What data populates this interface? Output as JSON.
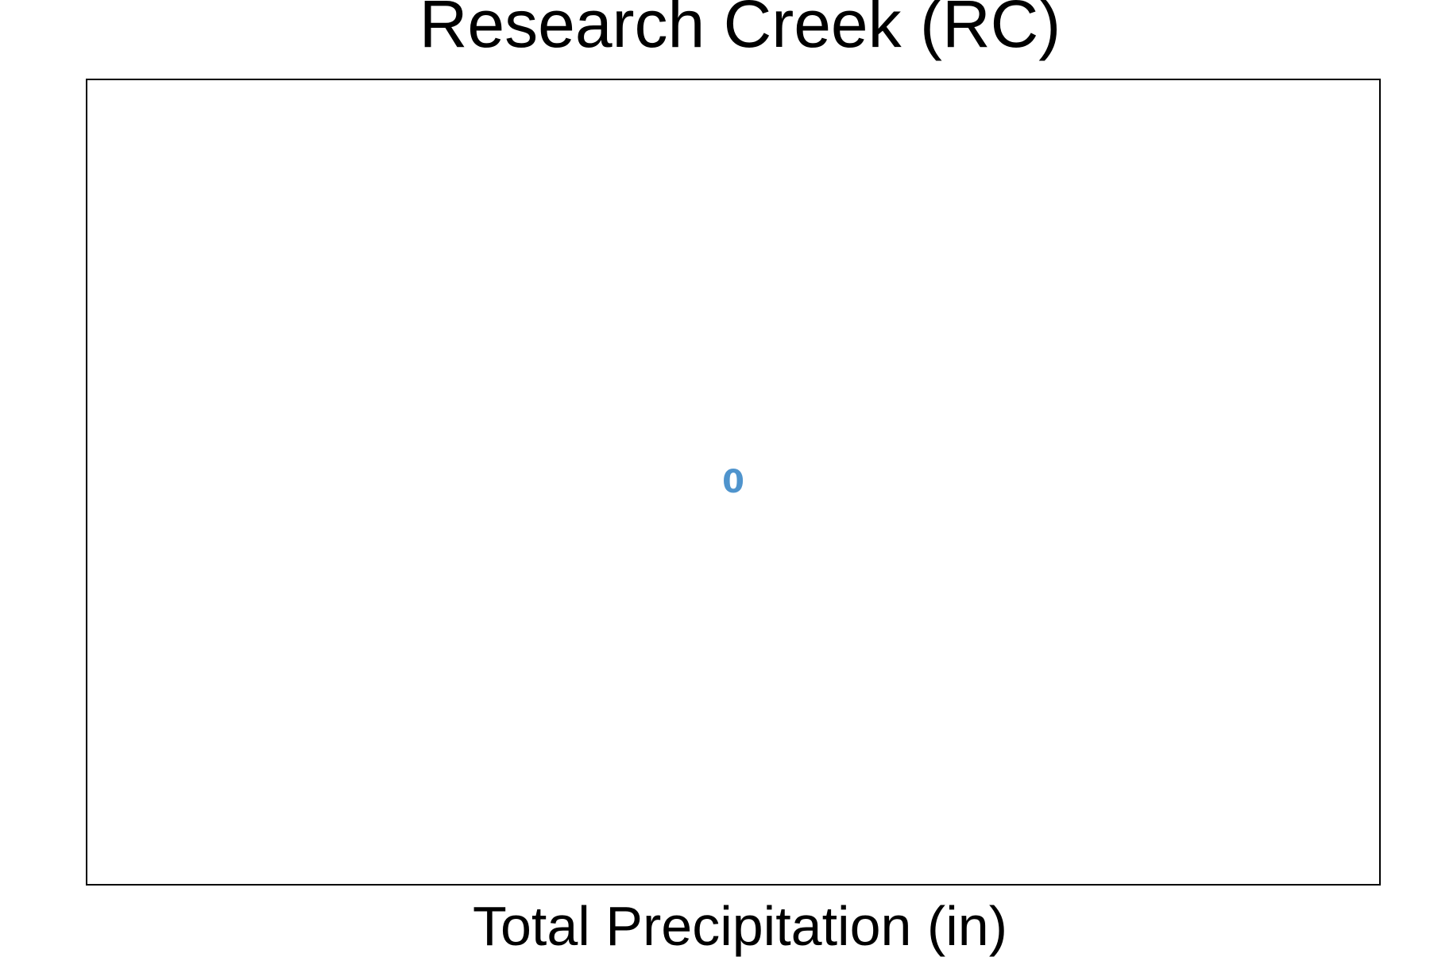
{
  "chart_data": {
    "type": "scatter",
    "title": "Research Creek (RC)",
    "xlabel": "Total Precipitation (in)",
    "ylabel": "",
    "grid": false,
    "annotations": [
      {
        "text": "0",
        "color": "#4f94cd",
        "position": "center"
      }
    ]
  }
}
